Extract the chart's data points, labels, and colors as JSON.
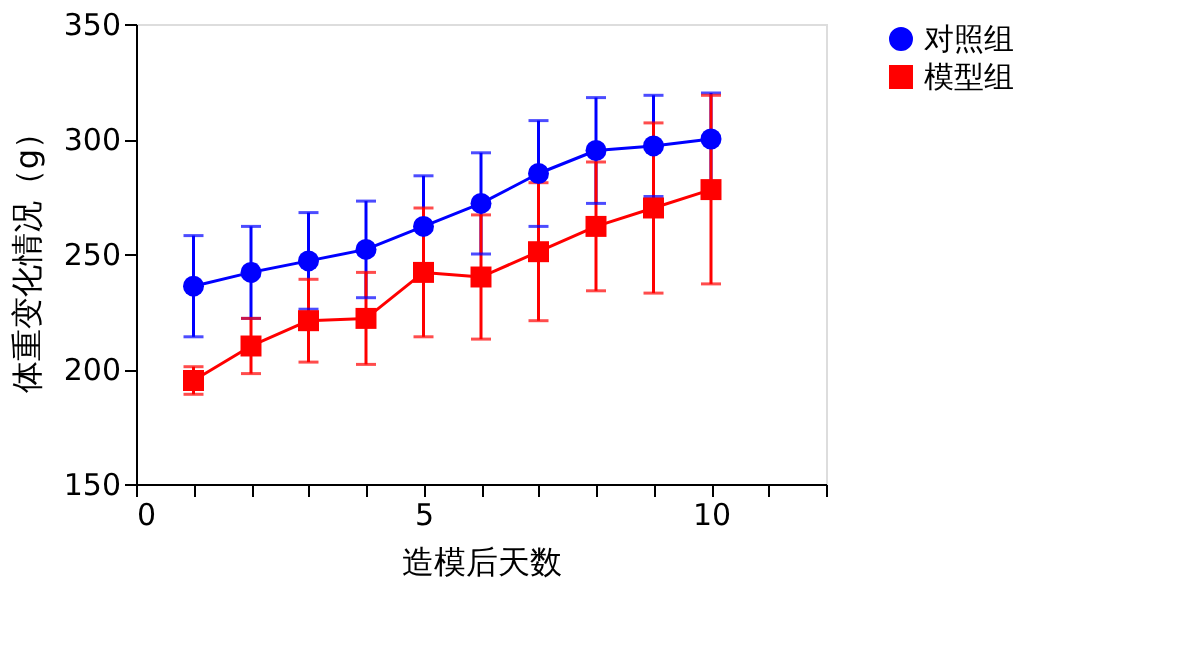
{
  "chart_data": {
    "type": "line",
    "xlabel": "造模后天数",
    "ylabel": "体重变化情况（g）",
    "x": [
      1,
      2,
      3,
      4,
      5,
      6,
      7,
      8,
      9,
      10
    ],
    "series": [
      {
        "name": "对照组",
        "color": "#0000ff",
        "marker": "circle",
        "values": [
          236,
          242,
          247,
          252,
          262,
          272,
          285,
          295,
          297,
          300
        ],
        "errors": [
          22,
          20,
          21,
          21,
          22,
          22,
          23,
          23,
          22,
          20
        ]
      },
      {
        "name": "模型组",
        "color": "#ff0000",
        "marker": "square",
        "values": [
          195,
          210,
          221,
          222,
          242,
          240,
          251,
          262,
          270,
          278
        ],
        "errors": [
          6,
          12,
          18,
          20,
          28,
          27,
          30,
          28,
          37,
          41
        ]
      }
    ],
    "xlim": [
      0,
      12
    ],
    "xticks": [
      0,
      {
        "value": 1,
        "label": null
      },
      {
        "value": 2,
        "label": null
      },
      {
        "value": 3,
        "label": null
      },
      {
        "value": 4,
        "label": null
      },
      5,
      {
        "value": 6,
        "label": null
      },
      {
        "value": 7,
        "label": null
      },
      {
        "value": 8,
        "label": null
      },
      {
        "value": 9,
        "label": null
      },
      10,
      {
        "value": 11,
        "label": null
      },
      {
        "value": 12,
        "label": null
      }
    ],
    "ylim": [
      150,
      350
    ],
    "yticks": [
      150,
      200,
      250,
      300,
      350
    ],
    "grid": false,
    "legend": "top right",
    "line_style": "solid"
  }
}
